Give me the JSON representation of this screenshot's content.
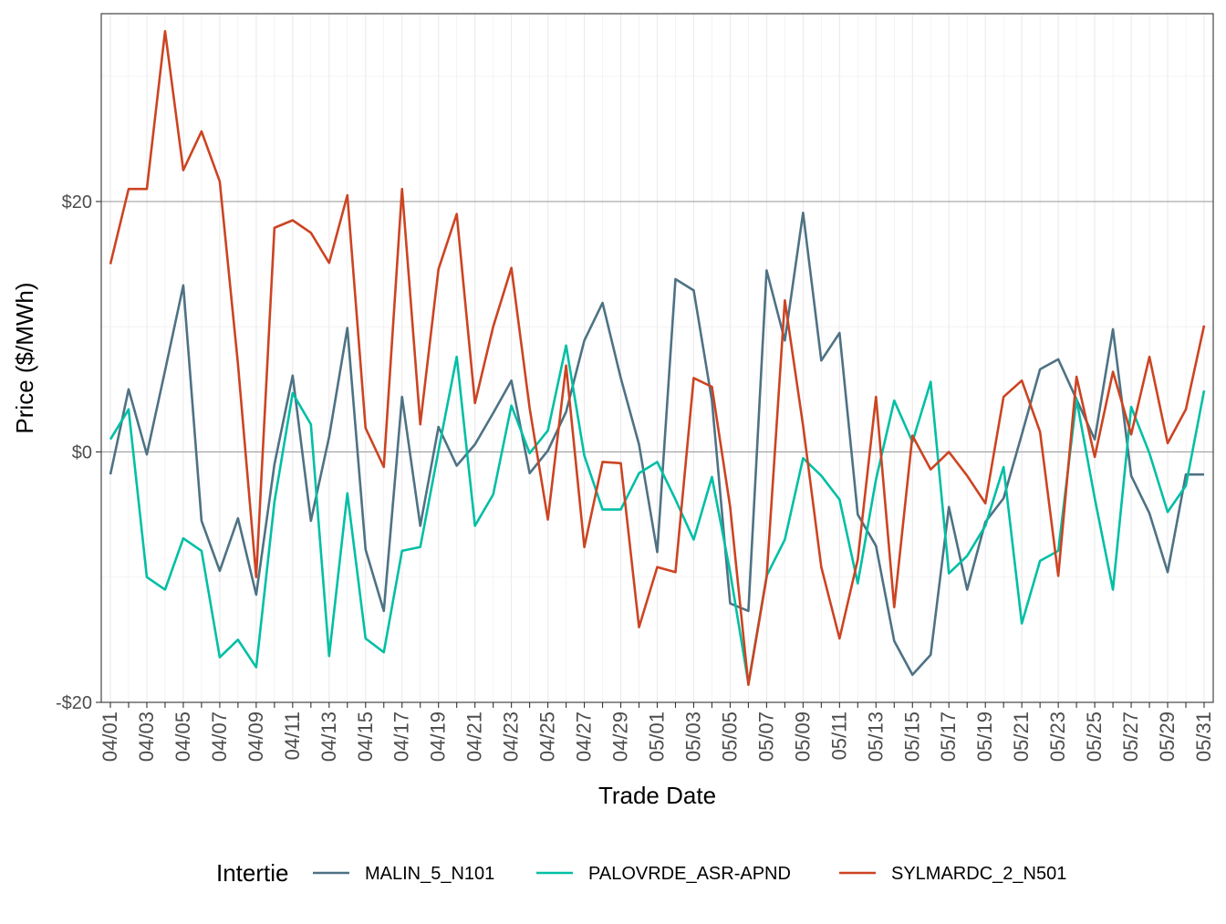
{
  "chart_data": {
    "type": "line",
    "xlabel": "Trade Date",
    "ylabel": "Price ($/MWh)",
    "ylim": [
      -20,
      35
    ],
    "y_ticks": [
      -20,
      0,
      20
    ],
    "y_tick_labels": [
      "-$20",
      "$0",
      "$20"
    ],
    "grid": true,
    "legend_position": "bottom",
    "legend_title": "Intertie",
    "x": [
      "04/01",
      "04/02",
      "04/03",
      "04/04",
      "04/05",
      "04/06",
      "04/07",
      "04/08",
      "04/09",
      "04/10",
      "04/11",
      "04/12",
      "04/13",
      "04/14",
      "04/15",
      "04/16",
      "04/17",
      "04/18",
      "04/19",
      "04/20",
      "04/21",
      "04/22",
      "04/23",
      "04/24",
      "04/25",
      "04/26",
      "04/27",
      "04/28",
      "04/29",
      "04/30",
      "05/01",
      "05/02",
      "05/03",
      "05/04",
      "05/05",
      "05/06",
      "05/07",
      "05/08",
      "05/09",
      "05/10",
      "05/11",
      "05/12",
      "05/13",
      "05/14",
      "05/15",
      "05/16",
      "05/17",
      "05/18",
      "05/19",
      "05/20",
      "05/21",
      "05/22",
      "05/23",
      "05/24",
      "05/25",
      "05/26",
      "05/27",
      "05/28",
      "05/29",
      "05/30",
      "05/31"
    ],
    "x_tick_labels": [
      "04/01",
      "04/03",
      "04/05",
      "04/07",
      "04/09",
      "04/11",
      "04/13",
      "04/15",
      "04/17",
      "04/19",
      "04/21",
      "04/23",
      "04/25",
      "04/27",
      "04/29",
      "05/01",
      "05/03",
      "05/05",
      "05/07",
      "05/09",
      "05/11",
      "05/13",
      "05/15",
      "05/17",
      "05/19",
      "05/21",
      "05/23",
      "05/25",
      "05/27",
      "05/29",
      "05/31"
    ],
    "series": [
      {
        "name": "MALIN_5_N101",
        "color": "#4e7284",
        "values": [
          -1.8,
          5.0,
          -0.2,
          6.5,
          13.3,
          -5.5,
          -9.5,
          -5.3,
          -11.4,
          -1.0,
          6.1,
          -5.5,
          1.2,
          9.9,
          -7.8,
          -12.7,
          4.4,
          -5.9,
          2.0,
          -1.1,
          0.6,
          3.1,
          5.7,
          -1.7,
          0.1,
          3.2,
          8.9,
          11.9,
          5.9,
          0.6,
          -8.0,
          13.8,
          12.9,
          4.1,
          -12.1,
          -12.7,
          14.5,
          8.9,
          19.1,
          7.3,
          9.5,
          -5.0,
          -7.5,
          -15.1,
          -17.8,
          -16.2,
          -4.4,
          -11.0,
          -5.6,
          -3.7,
          1.4,
          6.6,
          7.4,
          4.2,
          1.0,
          9.8,
          -1.9,
          -4.9,
          -9.6,
          -1.8,
          -1.8
        ]
      },
      {
        "name": "PALOVRDE_ASR-APND",
        "color": "#00bfa5",
        "values": [
          1.0,
          3.4,
          -10.0,
          -11.0,
          -6.9,
          -7.9,
          -16.4,
          -15.0,
          -17.2,
          -4.0,
          4.7,
          2.2,
          -16.3,
          -3.3,
          -14.9,
          -16.0,
          -7.9,
          -7.6,
          0.1,
          7.6,
          -5.9,
          -3.4,
          3.7,
          -0.1,
          1.7,
          8.5,
          -0.3,
          -4.6,
          -4.6,
          -1.7,
          -0.8,
          -3.8,
          -7.0,
          -2.0,
          -9.6,
          -18.5,
          -9.9,
          -7.0,
          -0.5,
          -1.9,
          -3.8,
          -10.5,
          -2.2,
          4.1,
          0.8,
          5.6,
          -9.7,
          -8.3,
          -5.9,
          -1.2,
          -13.7,
          -8.7,
          -7.9,
          4.2,
          -3.7,
          -11.0,
          3.6,
          -0.1,
          -4.8,
          -2.7,
          4.9
        ]
      },
      {
        "name": "SYLMARDC_2_N501",
        "color": "#cc4422",
        "values": [
          15.0,
          21.0,
          21.0,
          33.6,
          22.5,
          25.6,
          21.6,
          7.0,
          -10.0,
          17.9,
          18.5,
          17.5,
          15.1,
          20.5,
          1.9,
          -1.2,
          21.0,
          2.2,
          14.6,
          19.0,
          3.9,
          10.0,
          14.7,
          3.5,
          -5.4,
          6.9,
          -7.6,
          -0.8,
          -0.9,
          -14.0,
          -9.2,
          -9.6,
          5.9,
          5.2,
          -4.4,
          -18.6,
          -10.0,
          12.1,
          2.1,
          -9.2,
          -14.9,
          -8.6,
          4.4,
          -12.4,
          1.3,
          -1.4,
          0.0,
          -1.9,
          -4.1,
          4.4,
          5.7,
          1.6,
          -9.9,
          6.0,
          -0.4,
          6.4,
          1.4,
          7.6,
          0.7,
          3.4,
          10.1
        ]
      }
    ]
  }
}
